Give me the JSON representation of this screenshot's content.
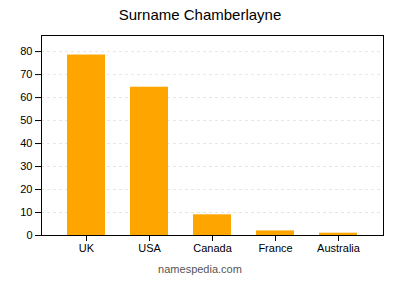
{
  "chart_data": {
    "type": "bar",
    "title": "Surname Chamberlayne",
    "categories": [
      "UK",
      "USA",
      "Canada",
      "France",
      "Australia"
    ],
    "values": [
      78.5,
      64.5,
      9.0,
      2.0,
      1.0
    ],
    "color": "#FFA500",
    "ylim": [
      0,
      87
    ],
    "yticks": [
      0,
      10,
      20,
      30,
      40,
      50,
      60,
      70,
      80
    ],
    "grid": true,
    "annotations": [
      "namespedia.com"
    ]
  }
}
